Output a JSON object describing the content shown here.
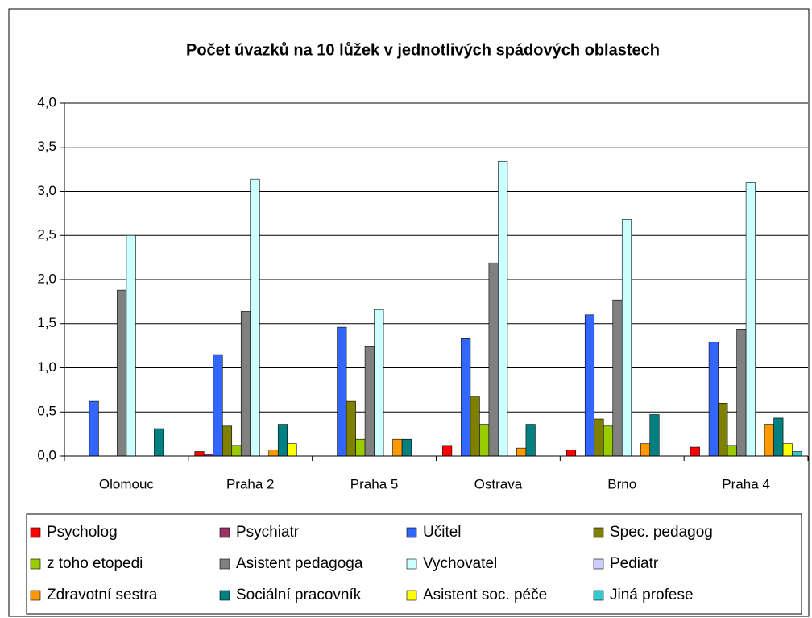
{
  "chart_data": {
    "type": "bar",
    "title": "Počet úvazků na 10 lůžek v jednotlivých spádových oblastech",
    "categories": [
      "Olomouc",
      "Praha 2",
      "Praha 5",
      "Ostrava",
      "Brno",
      "Praha 4"
    ],
    "series": [
      {
        "name": "Psycholog",
        "color": "#ff0000",
        "values": [
          0,
          0.05,
          0,
          0.12,
          0.07,
          0.1
        ]
      },
      {
        "name": "Psychiatr",
        "color": "#993366",
        "values": [
          0,
          0.02,
          0,
          0,
          0,
          0
        ]
      },
      {
        "name": "Učitel",
        "color": "#3366ff",
        "values": [
          0.62,
          1.15,
          1.46,
          1.33,
          1.6,
          1.29
        ]
      },
      {
        "name": "Spec. pedagog",
        "color": "#808000",
        "values": [
          0,
          0.34,
          0.62,
          0.67,
          0.42,
          0.6
        ]
      },
      {
        "name": "z toho etopedi",
        "color": "#99cc00",
        "values": [
          0,
          0.12,
          0.19,
          0.36,
          0.34,
          0.12
        ]
      },
      {
        "name": "Asistent pedagoga",
        "color": "#808080",
        "values": [
          1.88,
          1.64,
          1.24,
          2.19,
          1.77,
          1.44
        ]
      },
      {
        "name": "Vychovatel",
        "color": "#ccffff",
        "values": [
          2.5,
          3.14,
          1.66,
          3.34,
          2.68,
          3.1
        ]
      },
      {
        "name": "Pediatr",
        "color": "#ccccff",
        "values": [
          0,
          0,
          0,
          0,
          0,
          0
        ]
      },
      {
        "name": "Zdravotní sestra",
        "color": "#ff9900",
        "values": [
          0,
          0.07,
          0.19,
          0.09,
          0.14,
          0.36
        ]
      },
      {
        "name": "Sociální pracovník",
        "color": "#008080",
        "values": [
          0.31,
          0.36,
          0.19,
          0.36,
          0.47,
          0.43
        ]
      },
      {
        "name": "Asistent soc. péče",
        "color": "#ffff00",
        "values": [
          0,
          0.14,
          0,
          0,
          0,
          0.14
        ]
      },
      {
        "name": "Jiná profese",
        "color": "#33cccc",
        "values": [
          0,
          0,
          0,
          0,
          0,
          0.05
        ]
      }
    ],
    "ylim": [
      0,
      4
    ],
    "yticks": [
      {
        "value": 0,
        "label": "0,0"
      },
      {
        "value": 0.5,
        "label": "0,5"
      },
      {
        "value": 1,
        "label": "1,0"
      },
      {
        "value": 1.5,
        "label": "1,5"
      },
      {
        "value": 2,
        "label": "2,0"
      },
      {
        "value": 2.5,
        "label": "2,5"
      },
      {
        "value": 3,
        "label": "3,0"
      },
      {
        "value": 3.5,
        "label": "3,5"
      },
      {
        "value": 4,
        "label": "4,0"
      }
    ],
    "grid": true,
    "legend": "bottom"
  }
}
